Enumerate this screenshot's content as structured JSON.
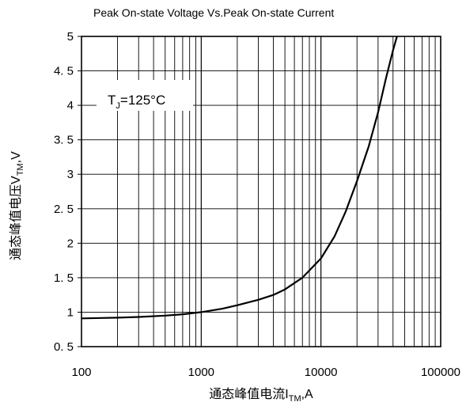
{
  "chart_data": {
    "type": "line",
    "title": "Peak On-state Voltage Vs.Peak On-state Current",
    "xlabel": {
      "prefix": "通态峰值电流",
      "symbol": "I",
      "subscript": "TM",
      "suffix": ",A"
    },
    "ylabel": {
      "prefix": "通态峰值电压",
      "symbol": "V",
      "subscript": "TM",
      "suffix": ",V"
    },
    "x_scale": "log",
    "xlim": [
      100,
      100000
    ],
    "ylim": [
      0.5,
      5
    ],
    "x_tick_labels": [
      "100",
      "1000",
      "10000",
      "100000"
    ],
    "y_ticks": [
      0.5,
      1,
      1.5,
      2,
      2.5,
      3,
      3.5,
      4,
      4.5,
      5
    ],
    "y_tick_labels": [
      "0. 5",
      "1",
      "1. 5",
      "2",
      "2. 5",
      "3",
      "3. 5",
      "4",
      "4. 5",
      "5"
    ],
    "grid": true,
    "annotation": {
      "symbol": "T",
      "subscript": "J",
      "text": "=125°C"
    },
    "series": [
      {
        "x": [
          100,
          200,
          300,
          500,
          700,
          1000,
          1500,
          2000,
          3000,
          4000,
          5000,
          7000,
          10000,
          13000,
          16000,
          20000,
          25000,
          30000,
          35000,
          40000,
          44000,
          46000
        ],
        "y": [
          0.91,
          0.92,
          0.93,
          0.95,
          0.97,
          1.0,
          1.05,
          1.1,
          1.18,
          1.25,
          1.33,
          1.5,
          1.78,
          2.1,
          2.45,
          2.9,
          3.4,
          3.9,
          4.4,
          4.8,
          5.05,
          5.2
        ]
      }
    ]
  }
}
